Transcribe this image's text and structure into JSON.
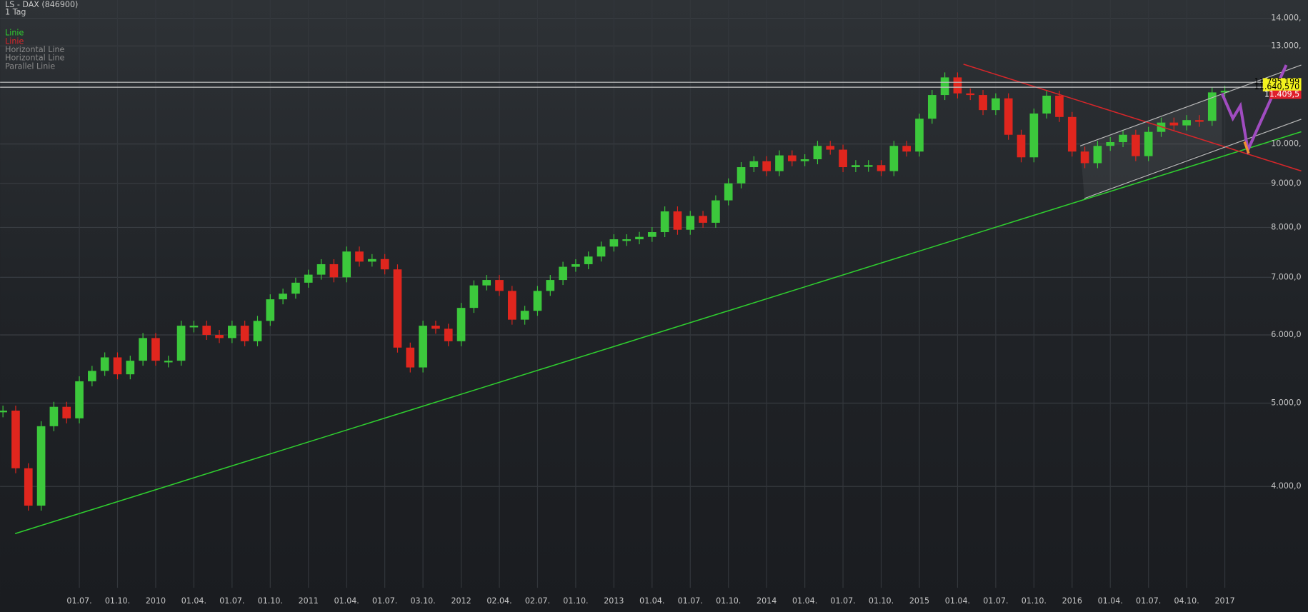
{
  "chart_data": {
    "type": "candlestick",
    "title": "LS - DAX (846900)",
    "subtitle": "1 Tag",
    "annotations": [
      "Linie",
      "Linie",
      "Horizontal Line",
      "Horizontal Line",
      "Parallel Linie"
    ],
    "log_scale": true,
    "grid": true,
    "up_color": "#3cc83c",
    "down_color": "#e0261e",
    "categories": [
      null,
      null,
      null,
      null,
      null,
      null,
      "01.07.",
      null,
      null,
      "01.10.",
      null,
      null,
      "2010",
      null,
      null,
      "01.04.",
      null,
      null,
      "01.07.",
      null,
      null,
      "01.10.",
      null,
      null,
      "2011",
      null,
      null,
      "01.04.",
      null,
      null,
      "01.07.",
      null,
      null,
      "03.10.",
      null,
      null,
      "2012",
      null,
      null,
      "02.04.",
      null,
      null,
      "02.07.",
      null,
      null,
      "01.10.",
      null,
      null,
      "2013",
      null,
      null,
      "01.04.",
      null,
      null,
      "01.07.",
      null,
      null,
      "01.10.",
      null,
      null,
      "2014",
      null,
      null,
      "01.04.",
      null,
      null,
      "01.07.",
      null,
      null,
      "01.10.",
      null,
      null,
      "2015",
      null,
      null,
      "01.04.",
      null,
      null,
      "01.07.",
      null,
      null,
      "01.10.",
      null,
      null,
      "2016",
      null,
      null,
      "01.04.",
      null,
      null,
      "01.07.",
      null,
      null,
      "04.10.",
      null,
      null,
      "2017"
    ],
    "values": [
      4900,
      4200,
      3800,
      4700,
      4950,
      4800,
      5300,
      5450,
      5650,
      5400,
      5600,
      5950,
      5600,
      5600,
      6150,
      6150,
      6000,
      5950,
      6150,
      5900,
      6230,
      6600,
      6700,
      6900,
      7050,
      7250,
      7000,
      7500,
      7300,
      7350,
      7150,
      5800,
      5500,
      6150,
      6100,
      5900,
      6450,
      6850,
      6950,
      6750,
      6250,
      6400,
      6750,
      6950,
      7200,
      7250,
      7400,
      7600,
      7750,
      7750,
      7800,
      7900,
      8350,
      7950,
      8250,
      8100,
      8600,
      9000,
      9400,
      9550,
      9300,
      9700,
      9550,
      9600,
      9950,
      9850,
      9400,
      9450,
      9450,
      9300,
      9950,
      9800,
      10700,
      11400,
      11950,
      11450,
      11400,
      10950,
      11300,
      10250,
      9650,
      10850,
      11380,
      10750,
      9800,
      9500,
      9950,
      10050,
      10250,
      9680,
      10330,
      10590,
      10510,
      10660,
      10640,
      11480,
      11530
    ],
    "ylim": [
      3050,
      14700
    ],
    "yticks": [
      {
        "value": 4000,
        "label": "4.000,0"
      },
      {
        "value": 5000,
        "label": "5.000,0"
      },
      {
        "value": 6000,
        "label": "6.000,0"
      },
      {
        "value": 7000,
        "label": "7.000,0"
      },
      {
        "value": 8000,
        "label": "8.000,0"
      },
      {
        "value": 9000,
        "label": "9.000,0"
      },
      {
        "value": 10000,
        "label": "10.000,"
      },
      {
        "value": 13000,
        "label": "13.000,"
      },
      {
        "value": 14000,
        "label": "14.000,"
      }
    ],
    "horizontal_lines": [
      {
        "value": 11795.199,
        "label": "11.795,199"
      },
      {
        "value": 11640.57,
        "label": "11.640,570"
      }
    ],
    "last_price": {
      "value": 11409.5,
      "label": "11.409,5"
    }
  }
}
